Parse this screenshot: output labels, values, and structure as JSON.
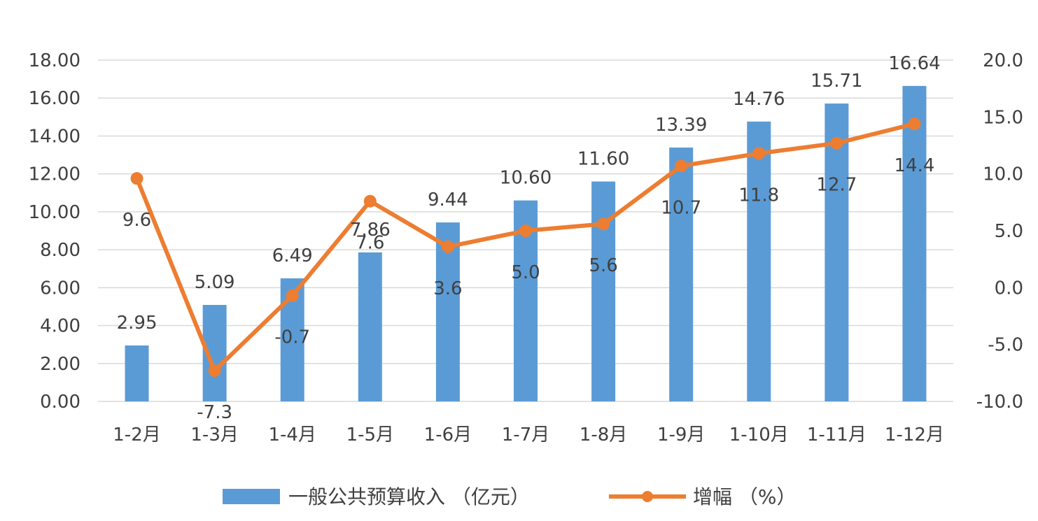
{
  "chart_data": {
    "type": "bar",
    "categories": [
      "1-2月",
      "1-3月",
      "1-4月",
      "1-5月",
      "1-6月",
      "1-7月",
      "1-8月",
      "1-9月",
      "1-10月",
      "1-11月",
      "1-12月"
    ],
    "series": [
      {
        "name": "一般公共预算收入 （亿元）",
        "type": "bar",
        "axis": "left",
        "color": "#5b9bd5",
        "values": [
          2.95,
          5.09,
          6.49,
          7.86,
          9.44,
          10.6,
          11.6,
          13.39,
          14.76,
          15.71,
          16.64
        ],
        "labels": [
          "2.95",
          "5.09",
          "6.49",
          "7.86",
          "9.44",
          "10.60",
          "11.60",
          "13.39",
          "14.76",
          "15.71",
          "16.64"
        ]
      },
      {
        "name": "增幅 （%）",
        "type": "line",
        "axis": "right",
        "color": "#ed7d31",
        "values": [
          9.6,
          -7.3,
          -0.7,
          7.6,
          3.6,
          5.0,
          5.6,
          10.7,
          11.8,
          12.7,
          14.4
        ],
        "labels": [
          "9.6",
          "-7.3",
          "-0.7",
          "7.6",
          "3.6",
          "5.0",
          "5.6",
          "10.7",
          "11.8",
          "12.7",
          "14.4"
        ]
      }
    ],
    "y_left": {
      "ylim": [
        0,
        18
      ],
      "ticks": [
        "0.00",
        "2.00",
        "4.00",
        "6.00",
        "8.00",
        "10.00",
        "12.00",
        "14.00",
        "16.00",
        "18.00"
      ]
    },
    "y_right": {
      "ylim": [
        -10,
        20
      ],
      "ticks": [
        "-10.0",
        "-5.0",
        "0.0",
        "5.0",
        "10.0",
        "15.0",
        "20.0"
      ]
    },
    "grid": true,
    "legend_position": "bottom"
  }
}
